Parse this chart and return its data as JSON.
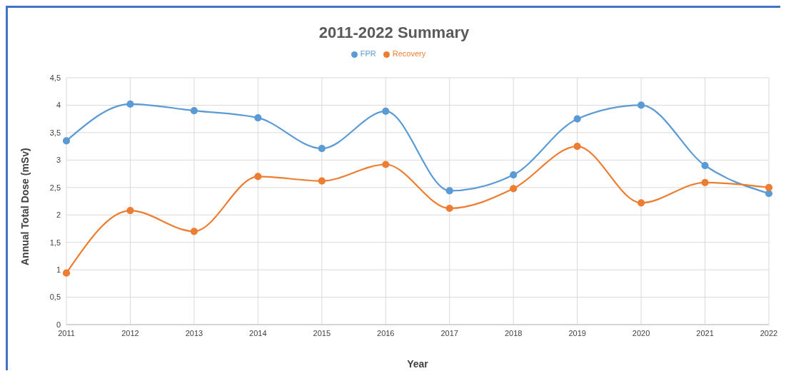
{
  "chart_data": {
    "type": "line",
    "title": "2011-2022 Summary",
    "xlabel": "Year",
    "ylabel": "Annual Total Dose (mSv)",
    "categories": [
      "2011",
      "2012",
      "2013",
      "2014",
      "2015",
      "2016",
      "2017",
      "2018",
      "2019",
      "2020",
      "2021",
      "2022"
    ],
    "series": [
      {
        "name": "FPR",
        "color": "#5b9bd5",
        "values": [
          3.35,
          4.02,
          3.9,
          3.77,
          3.21,
          3.89,
          2.44,
          2.73,
          3.75,
          4.0,
          2.9,
          2.39
        ]
      },
      {
        "name": "Recovery",
        "color": "#ed7d31",
        "values": [
          0.94,
          2.08,
          1.7,
          2.7,
          2.62,
          2.92,
          2.12,
          2.48,
          3.25,
          2.22,
          2.59,
          2.5
        ]
      }
    ],
    "ylim": [
      0,
      4.5
    ],
    "yticks": [
      0,
      {
        "value": 0.5,
        "label": "0,5"
      },
      1,
      {
        "value": 1.5,
        "label": "1,5"
      },
      2,
      {
        "value": 2.5,
        "label": "2,5"
      },
      3,
      {
        "value": 3.5,
        "label": "3,5"
      },
      4,
      {
        "value": 4.5,
        "label": "4,5"
      }
    ],
    "grid": true,
    "legend": "top",
    "marker": "circle",
    "line_style": "solid"
  }
}
